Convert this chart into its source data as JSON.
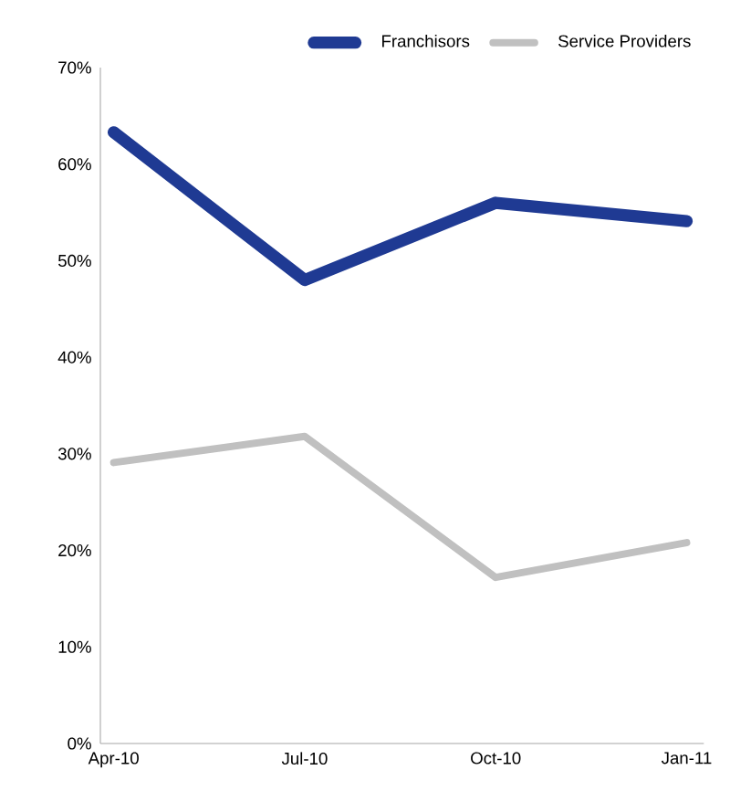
{
  "chart_data": {
    "type": "line",
    "categories": [
      "Apr-10",
      "Jul-10",
      "Oct-10",
      "Jan-11"
    ],
    "series": [
      {
        "name": "Franchisors",
        "color": "#1f3a93",
        "values": [
          63.3,
          48.0,
          56.0,
          54.1
        ]
      },
      {
        "name": "Service Providers",
        "color": "#c0c0c0",
        "values": [
          29.1,
          31.8,
          17.2,
          20.8
        ]
      }
    ],
    "ylim": [
      0,
      70
    ],
    "yticks": [
      {
        "value": 0,
        "label": "0%"
      },
      {
        "value": 10,
        "label": "10%"
      },
      {
        "value": 20,
        "label": "20%"
      },
      {
        "value": 30,
        "label": "30%"
      },
      {
        "value": 40,
        "label": "40%"
      },
      {
        "value": 50,
        "label": "50%"
      },
      {
        "value": 60,
        "label": "60%"
      },
      {
        "value": 70,
        "label": "70%"
      }
    ],
    "grid": false,
    "legend": "top right",
    "marker": "none",
    "line_style": "solid"
  }
}
